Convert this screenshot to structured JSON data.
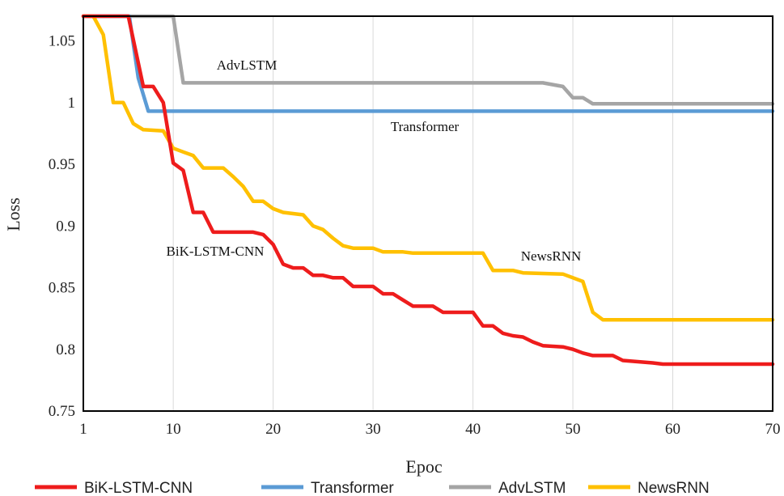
{
  "chart_data": {
    "type": "line",
    "title": "",
    "xlabel": "Epoc",
    "ylabel": "Loss",
    "xlim": [
      1,
      70
    ],
    "ylim": [
      0.75,
      1.07
    ],
    "xticks": [
      1,
      10,
      20,
      30,
      40,
      50,
      60,
      70
    ],
    "yticks": [
      0.75,
      0.8,
      0.85,
      0.9,
      0.95,
      1,
      1.05
    ],
    "ytick_labels": [
      "0.75",
      "0.8",
      "0.85",
      "0.9",
      "0.95",
      "1",
      "1.05"
    ],
    "grid": "vertical",
    "legend_position": "bottom",
    "series": [
      {
        "name": "BiK-LSTM-CNN",
        "color": "#ee1c1c",
        "label": "BiK-LSTM-CNN",
        "points": [
          [
            1,
            1.07
          ],
          [
            5.5,
            1.07
          ],
          [
            7,
            1.013
          ],
          [
            8,
            1.013
          ],
          [
            9,
            1.0
          ],
          [
            10,
            0.951
          ],
          [
            11,
            0.945
          ],
          [
            12,
            0.911
          ],
          [
            13,
            0.911
          ],
          [
            14,
            0.895
          ],
          [
            18,
            0.895
          ],
          [
            19,
            0.893
          ],
          [
            20,
            0.885
          ],
          [
            21,
            0.869
          ],
          [
            22,
            0.866
          ],
          [
            23,
            0.866
          ],
          [
            24,
            0.86
          ],
          [
            25,
            0.86
          ],
          [
            26,
            0.858
          ],
          [
            27,
            0.858
          ],
          [
            28,
            0.851
          ],
          [
            30,
            0.851
          ],
          [
            31,
            0.845
          ],
          [
            32,
            0.845
          ],
          [
            33,
            0.84
          ],
          [
            34,
            0.835
          ],
          [
            36,
            0.835
          ],
          [
            37,
            0.83
          ],
          [
            40,
            0.83
          ],
          [
            41,
            0.819
          ],
          [
            42,
            0.819
          ],
          [
            43,
            0.813
          ],
          [
            44,
            0.811
          ],
          [
            45,
            0.81
          ],
          [
            46,
            0.806
          ],
          [
            47,
            0.803
          ],
          [
            49,
            0.802
          ],
          [
            50,
            0.8
          ],
          [
            51,
            0.797
          ],
          [
            52,
            0.795
          ],
          [
            54,
            0.795
          ],
          [
            55,
            0.791
          ],
          [
            58,
            0.789
          ],
          [
            59,
            0.788
          ],
          [
            70,
            0.788
          ]
        ]
      },
      {
        "name": "Transformer",
        "color": "#5b9bd5",
        "label": "Transformer",
        "points": [
          [
            1,
            1.07
          ],
          [
            5.6,
            1.07
          ],
          [
            6.5,
            1.02
          ],
          [
            7.5,
            0.993
          ],
          [
            70,
            0.993
          ]
        ]
      },
      {
        "name": "AdvLSTM",
        "color": "#a5a5a5",
        "label": "AdvLSTM",
        "points": [
          [
            1,
            1.07
          ],
          [
            10,
            1.07
          ],
          [
            11,
            1.016
          ],
          [
            47,
            1.016
          ],
          [
            49,
            1.013
          ],
          [
            50,
            1.004
          ],
          [
            51,
            1.004
          ],
          [
            52,
            0.999
          ],
          [
            70,
            0.999
          ]
        ]
      },
      {
        "name": "NewsRNN",
        "color": "#ffc000",
        "label": "NewsRNN",
        "points": [
          [
            1,
            1.07
          ],
          [
            2,
            1.07
          ],
          [
            3,
            1.055
          ],
          [
            4,
            1.0
          ],
          [
            5,
            1.0
          ],
          [
            6,
            0.983
          ],
          [
            7,
            0.978
          ],
          [
            9,
            0.977
          ],
          [
            10,
            0.963
          ],
          [
            11,
            0.96
          ],
          [
            12,
            0.957
          ],
          [
            13,
            0.947
          ],
          [
            15,
            0.947
          ],
          [
            16,
            0.94
          ],
          [
            17,
            0.932
          ],
          [
            18,
            0.92
          ],
          [
            19,
            0.92
          ],
          [
            20,
            0.914
          ],
          [
            21,
            0.911
          ],
          [
            23,
            0.909
          ],
          [
            24,
            0.9
          ],
          [
            25,
            0.897
          ],
          [
            26,
            0.89
          ],
          [
            27,
            0.884
          ],
          [
            28,
            0.882
          ],
          [
            30,
            0.882
          ],
          [
            31,
            0.879
          ],
          [
            33,
            0.879
          ],
          [
            34,
            0.878
          ],
          [
            41,
            0.878
          ],
          [
            42,
            0.864
          ],
          [
            44,
            0.864
          ],
          [
            45,
            0.862
          ],
          [
            49,
            0.861
          ],
          [
            51,
            0.855
          ],
          [
            52,
            0.83
          ],
          [
            53,
            0.824
          ],
          [
            70,
            0.824
          ]
        ]
      }
    ]
  }
}
